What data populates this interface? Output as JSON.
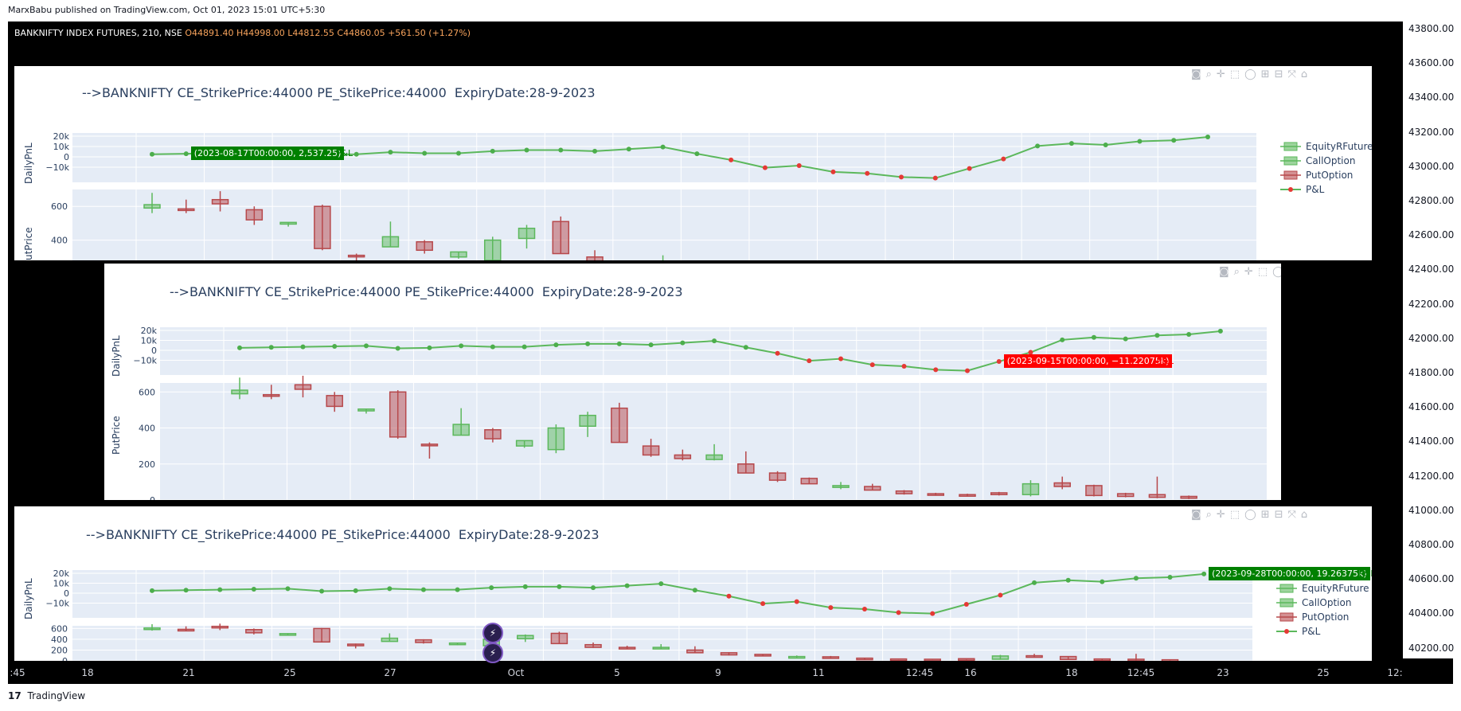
{
  "publish_line": "MarxBabu published on TradingView.com, Oct 01, 2023 15:01 UTC+5:30",
  "ticker": {
    "symbol": "BANKNIFTY INDEX FUTURES, 210, NSE",
    "o": "O44891.40",
    "h": "H44998.00",
    "l": "L44812.55",
    "c": "C44860.05",
    "change": "+561.50 (+1.27%)"
  },
  "footer": {
    "logo": "17",
    "brand": "TradingView"
  },
  "price_axis": [
    "43800.00",
    "43600.00",
    "43400.00",
    "43200.00",
    "43000.00",
    "42800.00",
    "42600.00",
    "42400.00",
    "42200.00",
    "42000.00",
    "41800.00",
    "41600.00",
    "41400.00",
    "41200.00",
    "41000.00",
    "40800.00",
    "40600.00",
    "40400.00",
    "40200.00"
  ],
  "time_axis": [
    ":45",
    "18",
    "21",
    "25",
    "27",
    "Oct",
    "5",
    "9",
    "11",
    "12:45",
    "16",
    "18",
    "12:45",
    "23",
    "25",
    "12:"
  ],
  "panel_title": "-->BANKNIFTY CE_StrikePrice:44000 PE_StikePrice:44000  ExpiryDate:28-9-2023",
  "modebar_icons": [
    "camera-icon",
    "zoom-icon",
    "pan-icon",
    "select-icon",
    "lasso-icon",
    "zoom-in-icon",
    "zoom-out-icon",
    "autoscale-icon",
    "home-icon"
  ],
  "legend": [
    {
      "name": "EquityRFuture",
      "type": "candle-green"
    },
    {
      "name": "CallOption",
      "type": "candle-green"
    },
    {
      "name": "PutOption",
      "type": "candle-mixed"
    },
    {
      "name": "P&L",
      "type": "line"
    }
  ],
  "axis_labels": {
    "pnl": "DailyPnL",
    "put": "PutPrice",
    "put_cut": "utPrice"
  },
  "pnl_ticks": [
    "20k",
    "10k",
    "0",
    "−10k"
  ],
  "put_ticks": [
    "600",
    "400",
    "200",
    "0"
  ],
  "tooltips": [
    {
      "text": "(2023-08-17T00:00:00, 2,537.25)",
      "name": "P&L",
      "color": "#008000"
    },
    {
      "text": "(2023-09-15T00:00:00, −11.22075k)",
      "name": "P&L",
      "color": "#ff0000"
    },
    {
      "text": "(2023-09-28T00:00:00, 19.26375k)",
      "name": "P&L",
      "color": "#008000"
    }
  ],
  "badges": [
    "⚡",
    "⚡"
  ],
  "colors": {
    "green_line": "#5cb85c",
    "red_dot": "#e53935",
    "candle_up": "#5cb85c",
    "candle_down": "#b7484b",
    "plot_bg": "#e5ecf6"
  },
  "chart_data": {
    "type": "line",
    "series": [
      {
        "name": "P&L",
        "values": [
          2537,
          3000,
          3500,
          4000,
          4500,
          2000,
          2500,
          4500,
          3500,
          3500,
          5500,
          6500,
          6500,
          5500,
          7500,
          9500,
          3000,
          -3000,
          -10500,
          -8500,
          -14500,
          -16000,
          -19500,
          -20500,
          -11221,
          -2000,
          10500,
          13000,
          11500,
          15000,
          16000,
          19264
        ]
      },
      {
        "name": "PutOption",
        "candles": [
          {
            "o": 590,
            "h": 680,
            "l": 560,
            "c": 610
          },
          {
            "o": 585,
            "h": 640,
            "l": 560,
            "c": 580
          },
          {
            "o": 640,
            "h": 690,
            "l": 570,
            "c": 615
          },
          {
            "o": 580,
            "h": 600,
            "l": 490,
            "c": 520
          },
          {
            "o": 495,
            "h": 505,
            "l": 480,
            "c": 505
          },
          {
            "o": 600,
            "h": 610,
            "l": 340,
            "c": 350
          },
          {
            "o": 310,
            "h": 320,
            "l": 230,
            "c": 305
          },
          {
            "o": 360,
            "h": 510,
            "l": 360,
            "c": 420
          },
          {
            "o": 390,
            "h": 400,
            "l": 320,
            "c": 340
          },
          {
            "o": 300,
            "h": 330,
            "l": 290,
            "c": 330
          },
          {
            "o": 280,
            "h": 420,
            "l": 260,
            "c": 400
          },
          {
            "o": 410,
            "h": 490,
            "l": 350,
            "c": 470
          },
          {
            "o": 510,
            "h": 540,
            "l": 320,
            "c": 320
          },
          {
            "o": 300,
            "h": 340,
            "l": 240,
            "c": 250
          },
          {
            "o": 250,
            "h": 280,
            "l": 220,
            "c": 230
          },
          {
            "o": 225,
            "h": 310,
            "l": 220,
            "c": 250
          },
          {
            "o": 200,
            "h": 270,
            "l": 150,
            "c": 150
          },
          {
            "o": 150,
            "h": 160,
            "l": 100,
            "c": 110
          },
          {
            "o": 120,
            "h": 125,
            "l": 90,
            "c": 90
          },
          {
            "o": 70,
            "h": 100,
            "l": 60,
            "c": 80
          },
          {
            "o": 75,
            "h": 90,
            "l": 55,
            "c": 55
          },
          {
            "o": 50,
            "h": 55,
            "l": 30,
            "c": 35
          },
          {
            "o": 35,
            "h": 40,
            "l": 25,
            "c": 30
          },
          {
            "o": 30,
            "h": 35,
            "l": 20,
            "c": 25
          },
          {
            "o": 40,
            "h": 45,
            "l": 25,
            "c": 30
          },
          {
            "o": 30,
            "h": 110,
            "l": 20,
            "c": 90
          },
          {
            "o": 95,
            "h": 130,
            "l": 60,
            "c": 75
          },
          {
            "o": 80,
            "h": 85,
            "l": 20,
            "c": 25
          },
          {
            "o": 35,
            "h": 40,
            "l": 15,
            "c": 20
          },
          {
            "o": 30,
            "h": 130,
            "l": 10,
            "c": 15
          },
          {
            "o": 20,
            "h": 25,
            "l": 5,
            "c": 10
          }
        ]
      }
    ],
    "pnl_ylim": [
      -20000,
      20000
    ],
    "put_ylim": [
      0,
      650
    ]
  }
}
